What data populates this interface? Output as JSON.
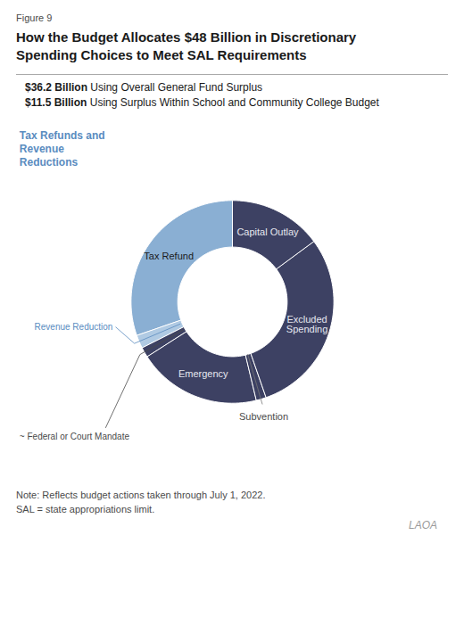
{
  "chart_data": {
    "type": "pie",
    "figure_label": "Figure 9",
    "title": "How the Budget Allocates $48 Billion in Discretionary\nSpending Choices to Meet SAL Requirements",
    "subtitle": [
      [
        "$36.2 Billion",
        " Using Overall General Fund Surplus"
      ],
      [
        "$11.5 Billion",
        " Using Surplus Within School and Community College Budget"
      ]
    ],
    "categories": [
      "Capital Outlay",
      "Excluded\nSpending",
      "Subvention",
      "Emergency",
      "~ Federal or Court Mandate",
      "Revenue Reduction",
      "Tax Refund"
    ],
    "values": [
      14.0,
      28.0,
      1.5,
      18.5,
      1.5,
      2.0,
      28.5
    ],
    "colors": [
      "#3d4163",
      "#3d4163",
      "#3d4163",
      "#3d4163",
      "#3d4163",
      "#b0cae3",
      "#8aafd3"
    ],
    "annotations": [
      "Tax Refunds and\nRevenue\nReductions"
    ],
    "notes": [
      "Note: Reflects budget actions taken through July 1, 2022.",
      "SAL = state appropriations limit."
    ],
    "logo": "LAOA"
  }
}
